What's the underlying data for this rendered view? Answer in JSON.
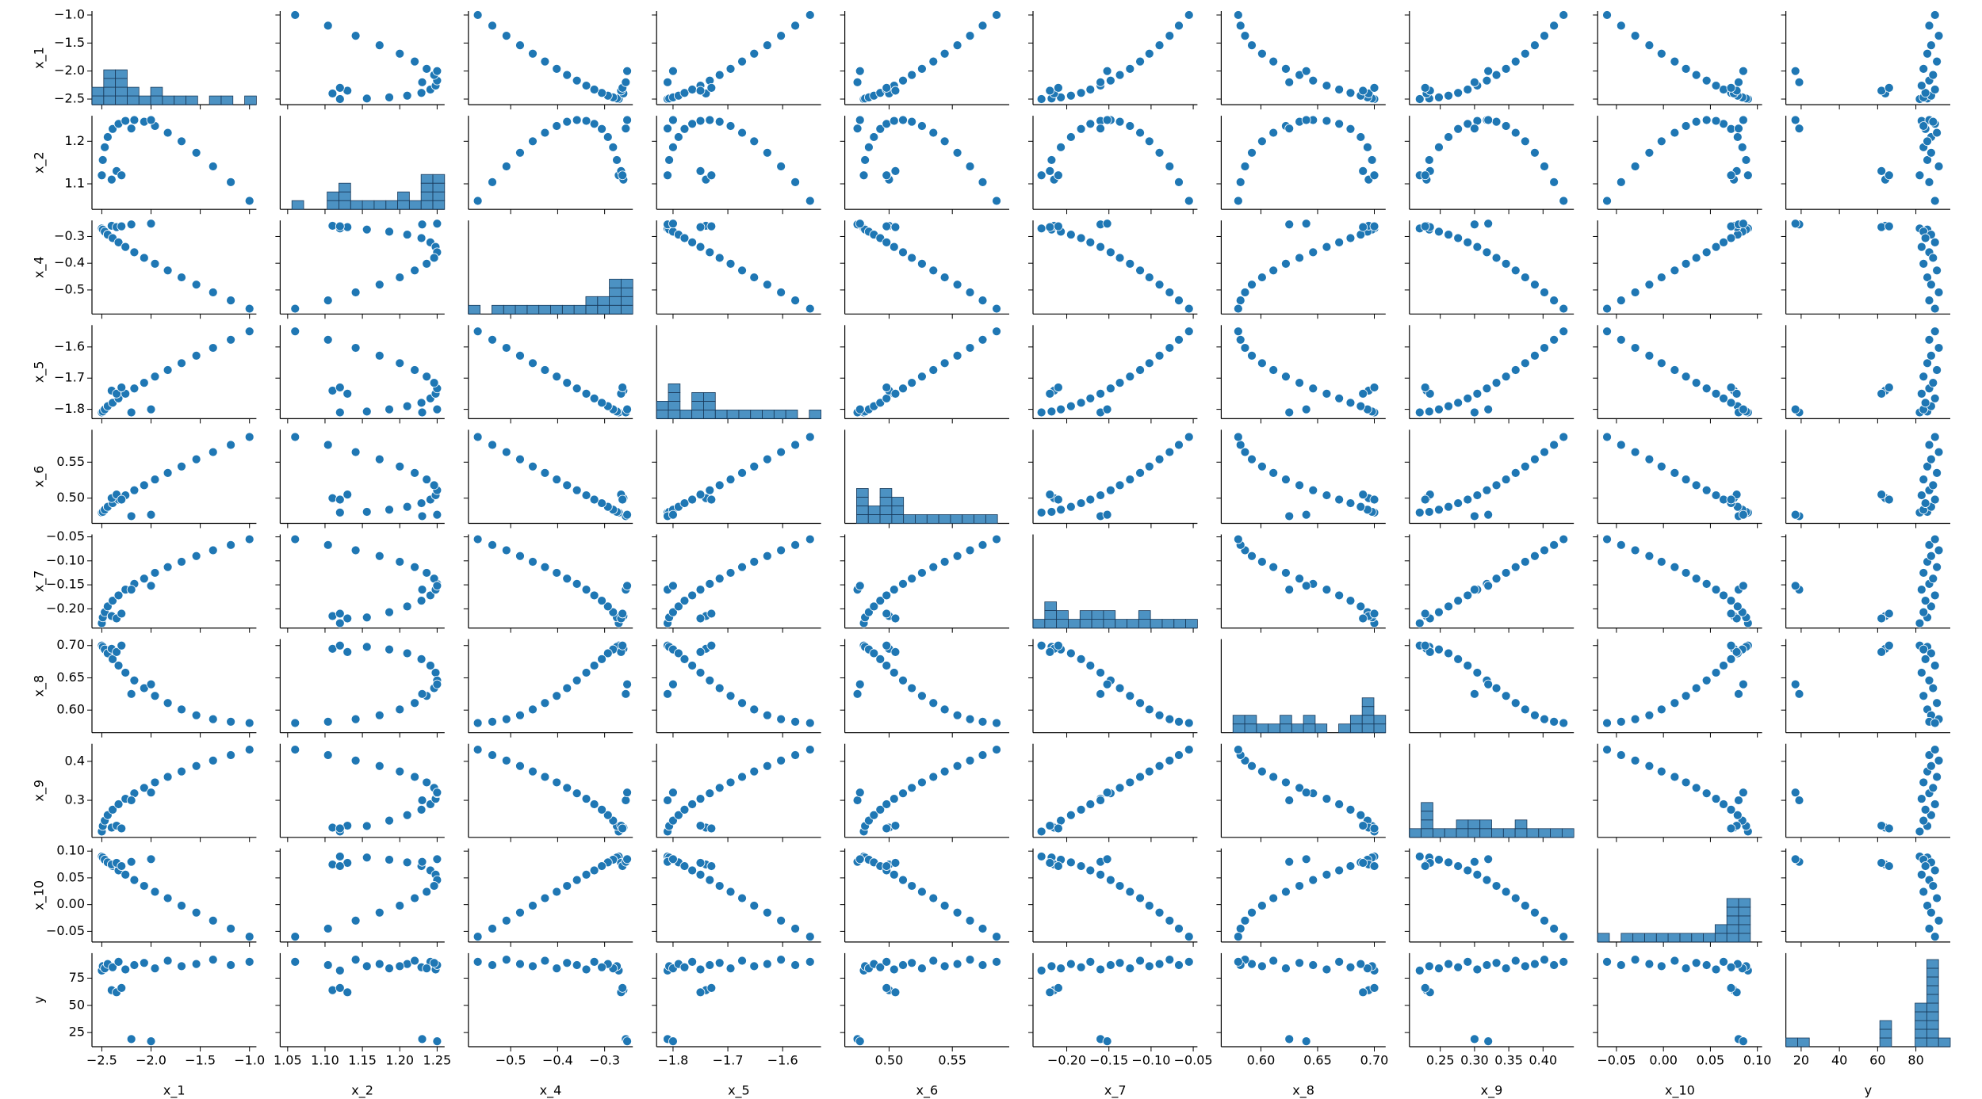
{
  "chart_data": {
    "type": "pairplot",
    "color": "#1f77b4",
    "variables": [
      {
        "name": "x_1",
        "lim": [
          -2.6,
          -0.93
        ],
        "values": [
          -2.5,
          -2.49,
          -2.47,
          -2.44,
          -2.39,
          -2.33,
          -2.26,
          -2.17,
          -2.07,
          -1.96,
          -1.83,
          -1.69,
          -1.54,
          -1.37,
          -1.19,
          -1.0,
          -2.4,
          -2.35,
          -2.3,
          -2.2,
          -2.0
        ],
        "xticks": [
          {
            "value": -2.5,
            "label": "−2.5"
          },
          {
            "value": -2.0,
            "label": "−2.0"
          },
          {
            "value": -1.5,
            "label": "−1.5"
          },
          {
            "value": -1.0,
            "label": "−1.0"
          }
        ],
        "yticks": [
          {
            "value": -2.5,
            "label": "−2.5"
          },
          {
            "value": -2.0,
            "label": "−2.0"
          },
          {
            "value": -1.5,
            "label": "−1.5"
          },
          {
            "value": -1.0,
            "label": "−1.0"
          }
        ]
      },
      {
        "name": "x_2",
        "lim": [
          1.04,
          1.26
        ],
        "values": [
          1.12,
          1.156,
          1.186,
          1.21,
          1.229,
          1.241,
          1.248,
          1.25,
          1.246,
          1.236,
          1.22,
          1.2,
          1.173,
          1.141,
          1.104,
          1.06,
          1.11,
          1.13,
          1.12,
          1.23,
          1.25
        ],
        "xticks": [
          1.05,
          {
            "value": 1.1,
            "label": "1.10"
          },
          1.15,
          {
            "value": 1.2,
            "label": "1.20"
          },
          1.25
        ],
        "yticks": [
          1.1,
          1.2
        ]
      },
      {
        "name": "x_4",
        "lim": [
          -0.59,
          -0.24
        ],
        "values": [
          -0.27,
          -0.274,
          -0.282,
          -0.293,
          -0.306,
          -0.322,
          -0.339,
          -0.359,
          -0.38,
          -0.402,
          -0.427,
          -0.453,
          -0.48,
          -0.509,
          -0.539,
          -0.57,
          -0.26,
          -0.265,
          -0.262,
          -0.255,
          -0.252
        ],
        "xticks": [
          {
            "value": -0.5,
            "label": "−0.5"
          },
          {
            "value": -0.4,
            "label": "−0.4"
          },
          {
            "value": -0.3,
            "label": "−0.3"
          }
        ],
        "yticks": [
          {
            "value": -0.5,
            "label": "−0.5"
          },
          {
            "value": -0.4,
            "label": "−0.4"
          },
          {
            "value": -0.3,
            "label": "−0.3"
          }
        ]
      },
      {
        "name": "x_5",
        "lim": [
          -1.83,
          -1.53
        ],
        "values": [
          -1.81,
          -1.807,
          -1.8,
          -1.79,
          -1.779,
          -1.765,
          -1.75,
          -1.733,
          -1.715,
          -1.695,
          -1.674,
          -1.652,
          -1.628,
          -1.603,
          -1.577,
          -1.55,
          -1.74,
          -1.75,
          -1.73,
          -1.81,
          -1.8
        ],
        "xticks": [
          {
            "value": -1.8,
            "label": "−1.8"
          },
          {
            "value": -1.7,
            "label": "−1.7"
          },
          {
            "value": -1.6,
            "label": "−1.6"
          }
        ],
        "yticks": [
          {
            "value": -1.8,
            "label": "−1.8"
          },
          {
            "value": -1.7,
            "label": "−1.7"
          },
          {
            "value": -1.6,
            "label": "−1.6"
          }
        ]
      },
      {
        "name": "x_6",
        "lim": [
          0.465,
          0.595
        ],
        "values": [
          0.48,
          0.481,
          0.484,
          0.488,
          0.493,
          0.498,
          0.504,
          0.511,
          0.518,
          0.526,
          0.535,
          0.544,
          0.554,
          0.564,
          0.574,
          0.585,
          0.5,
          0.505,
          0.498,
          0.475,
          0.477
        ],
        "xticks": [
          {
            "value": 0.5,
            "label": "0.50"
          },
          0.55
        ],
        "yticks": [
          {
            "value": 0.5,
            "label": "0.50"
          },
          0.55
        ]
      },
      {
        "name": "x_7",
        "lim": [
          -0.24,
          -0.045
        ],
        "values": [
          -0.23,
          -0.218,
          -0.207,
          -0.195,
          -0.183,
          -0.172,
          -0.16,
          -0.148,
          -0.137,
          -0.125,
          -0.113,
          -0.102,
          -0.09,
          -0.078,
          -0.067,
          -0.055,
          -0.215,
          -0.22,
          -0.21,
          -0.16,
          -0.152
        ],
        "xticks": [
          {
            "value": -0.2,
            "label": "−0.20"
          },
          {
            "value": -0.15,
            "label": "−0.15"
          },
          {
            "value": -0.1,
            "label": "−0.10"
          },
          {
            "value": -0.05,
            "label": "−0.05"
          }
        ],
        "yticks": [
          {
            "value": -0.2,
            "label": "−0.20"
          },
          {
            "value": -0.15,
            "label": "−0.15"
          },
          {
            "value": -0.1,
            "label": "−0.10"
          },
          {
            "value": -0.05,
            "label": "−0.05"
          }
        ]
      },
      {
        "name": "x_8",
        "lim": [
          0.565,
          0.71
        ],
        "values": [
          0.7,
          0.698,
          0.694,
          0.688,
          0.679,
          0.669,
          0.658,
          0.646,
          0.634,
          0.622,
          0.611,
          0.601,
          0.592,
          0.586,
          0.582,
          0.58,
          0.695,
          0.69,
          0.7,
          0.625,
          0.64
        ],
        "xticks": [
          {
            "value": 0.6,
            "label": "0.60"
          },
          0.65,
          {
            "value": 0.7,
            "label": "0.70"
          }
        ],
        "yticks": [
          {
            "value": 0.6,
            "label": "0.60"
          },
          0.65,
          {
            "value": 0.7,
            "label": "0.70"
          }
        ]
      },
      {
        "name": "x_9",
        "lim": [
          0.205,
          0.445
        ],
        "values": [
          0.22,
          0.234,
          0.248,
          0.262,
          0.276,
          0.29,
          0.304,
          0.318,
          0.332,
          0.346,
          0.36,
          0.374,
          0.388,
          0.402,
          0.416,
          0.43,
          0.23,
          0.235,
          0.228,
          0.3,
          0.32
        ],
        "xticks": [
          0.25,
          {
            "value": 0.3,
            "label": "0.30"
          },
          0.35,
          {
            "value": 0.4,
            "label": "0.40"
          }
        ],
        "yticks": [
          0.3,
          0.4
        ]
      },
      {
        "name": "x_10",
        "lim": [
          -0.07,
          0.105
        ],
        "values": [
          0.09,
          0.088,
          0.084,
          0.079,
          0.072,
          0.064,
          0.056,
          0.046,
          0.035,
          0.024,
          0.012,
          -0.002,
          -0.015,
          -0.03,
          -0.045,
          -0.06,
          0.075,
          0.078,
          0.072,
          0.08,
          0.085
        ],
        "xticks": [
          {
            "value": -0.05,
            "label": "−0.05"
          },
          {
            "value": 0,
            "label": "0.00"
          },
          0.05,
          {
            "value": 0.1,
            "label": "0.10"
          }
        ],
        "yticks": [
          {
            "value": -0.05,
            "label": "−0.05"
          },
          {
            "value": 0,
            "label": "0.00"
          },
          0.05,
          {
            "value": 0.1,
            "label": "0.10"
          }
        ]
      },
      {
        "name": "y",
        "lim": [
          12,
          98
        ],
        "values": [
          82,
          86,
          84,
          88,
          85,
          90,
          83,
          87,
          89,
          84,
          91,
          86,
          88,
          92,
          87,
          90,
          64,
          62,
          66,
          19,
          17
        ],
        "xticks": [
          20,
          40,
          60,
          80
        ],
        "yticks": [
          25,
          50,
          75
        ]
      }
    ]
  }
}
